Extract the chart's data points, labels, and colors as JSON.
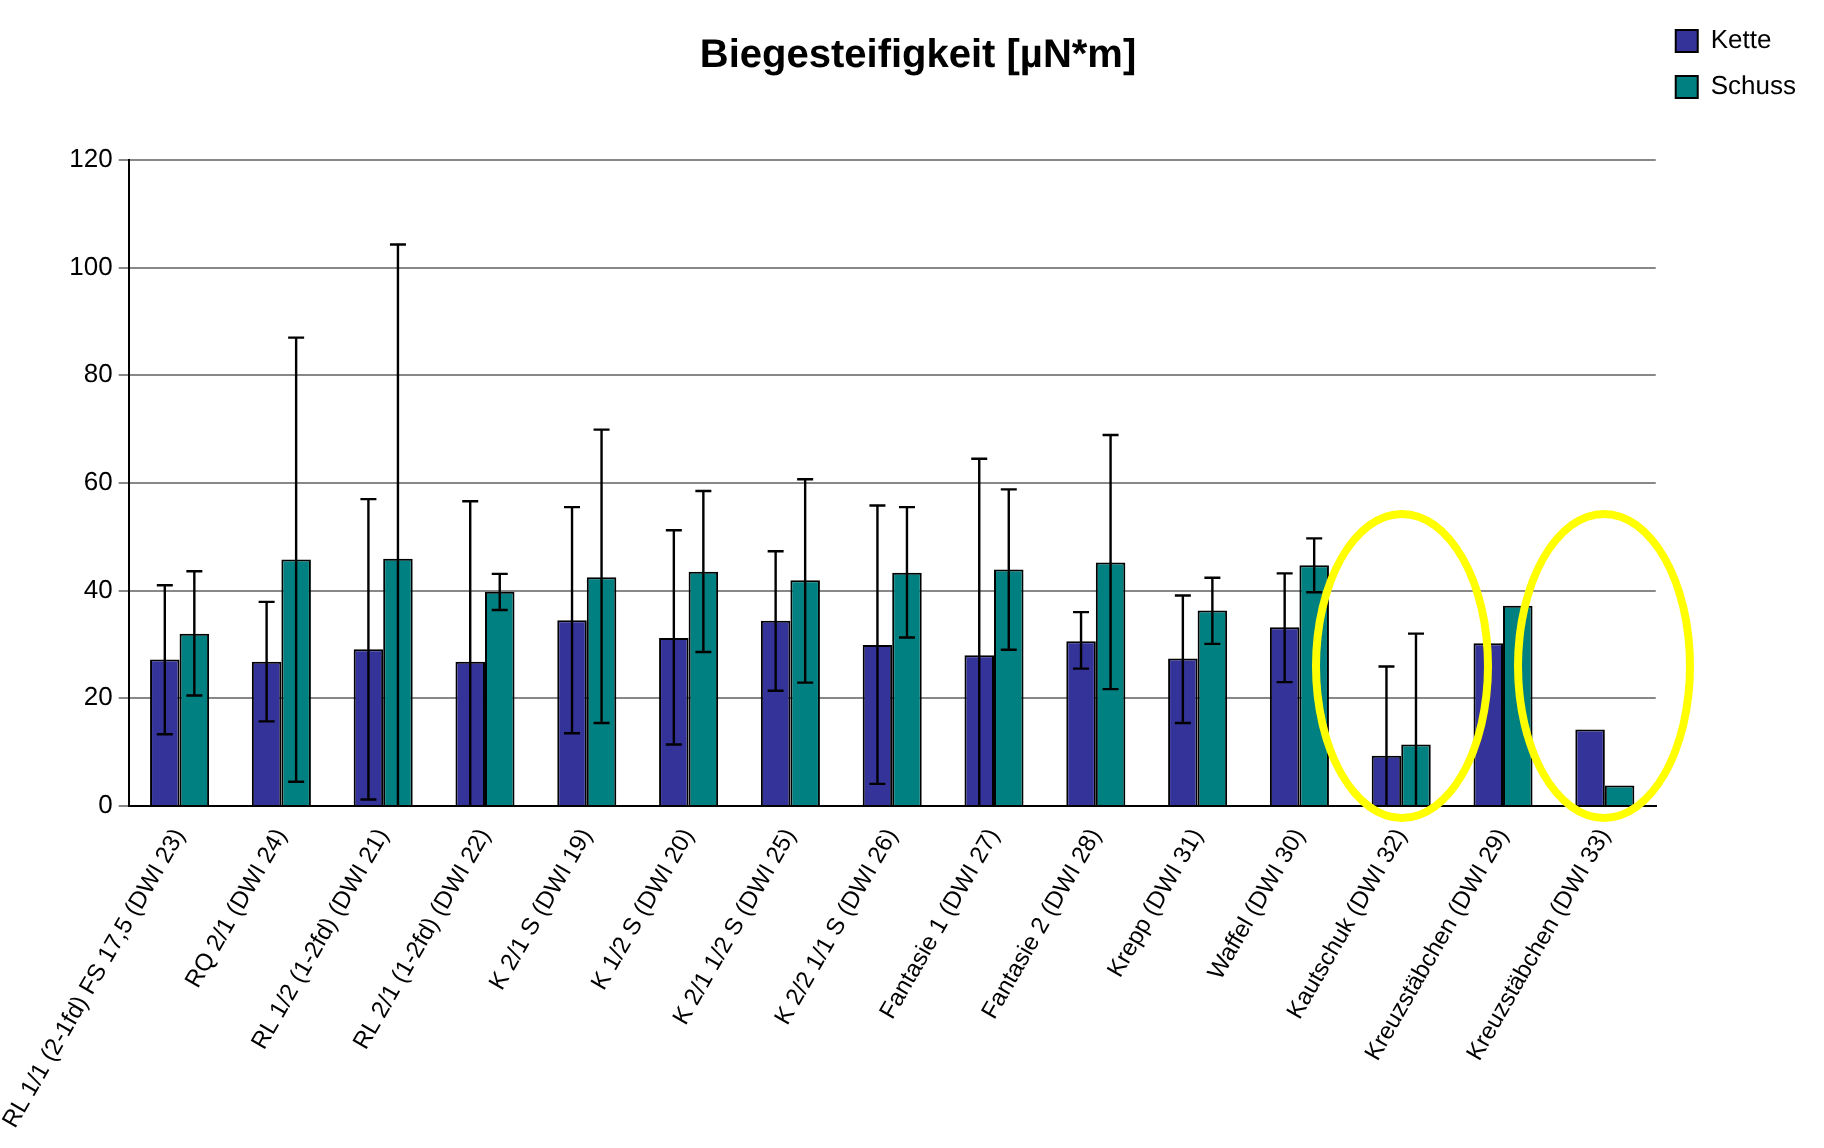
{
  "chart_data": {
    "type": "bar",
    "title": "Biegesteifigkeit [µN*m]",
    "categories": [
      "RL 1/1 (2-1fd) FS 17,5 (DWI 23)",
      "RQ 2/1 (DWI 24)",
      "RL 1/2 (1-2fd) (DWI 21)",
      "RL 2/1 (1-2fd) (DWI 22)",
      "K 2/1 S (DWI 19)",
      "K 1/2 S (DWI 20)",
      "K 2/1 1/2 S (DWI 25)",
      "K 2/2 1/1 S (DWI 26)",
      "Fantasie 1 (DWI 27)",
      "Fantasie 2 (DWI 28)",
      "Krepp (DWI 31)",
      "Waffel (DWI 30)",
      "Kautschuk (DWI 32)",
      "Kreuzstäbchen (DWI 29)",
      "Kreuzstäbchen (DWI 33)"
    ],
    "series": [
      {
        "name": "Kette",
        "color": "#333399",
        "values": [
          27.2,
          26.8,
          29.1,
          26.8,
          34.5,
          31.2,
          34.4,
          29.9,
          28.0,
          30.6,
          27.4,
          33.2,
          9.3,
          30.2,
          14.2
        ],
        "errors": [
          [
            13.3,
            41.0
          ],
          [
            15.7,
            37.9
          ],
          [
            1.2,
            57.0
          ],
          [
            0,
            56.6
          ],
          [
            13.5,
            55.5
          ],
          [
            11.4,
            51.2
          ],
          [
            21.4,
            47.3
          ],
          [
            4.1,
            55.8
          ],
          [
            0,
            64.5
          ],
          [
            25.5,
            36.0
          ],
          [
            15.4,
            39.1
          ],
          [
            23.0,
            43.2
          ],
          [
            0,
            25.9
          ],
          null,
          null
        ]
      },
      {
        "name": "Schuss",
        "color": "#008080",
        "values": [
          32.0,
          45.8,
          45.9,
          39.8,
          42.5,
          43.5,
          41.9,
          43.3,
          43.9,
          45.2,
          36.3,
          44.7,
          11.4,
          37.2,
          3.8
        ],
        "errors": [
          [
            20.5,
            43.6
          ],
          [
            4.5,
            87.0
          ],
          [
            0,
            104.3
          ],
          [
            36.4,
            43.1
          ],
          [
            15.4,
            69.9
          ],
          [
            28.6,
            58.5
          ],
          [
            22.9,
            60.7
          ],
          [
            31.3,
            55.5
          ],
          [
            29.0,
            58.8
          ],
          [
            21.7,
            68.9
          ],
          [
            30.1,
            42.4
          ],
          [
            39.7,
            49.7
          ],
          [
            0,
            32.0
          ],
          null,
          null
        ]
      }
    ],
    "ylim": [
      0,
      120
    ],
    "yticks": [
      0,
      20,
      40,
      60,
      80,
      100,
      120
    ],
    "grid": "y",
    "legend": "top right"
  }
}
